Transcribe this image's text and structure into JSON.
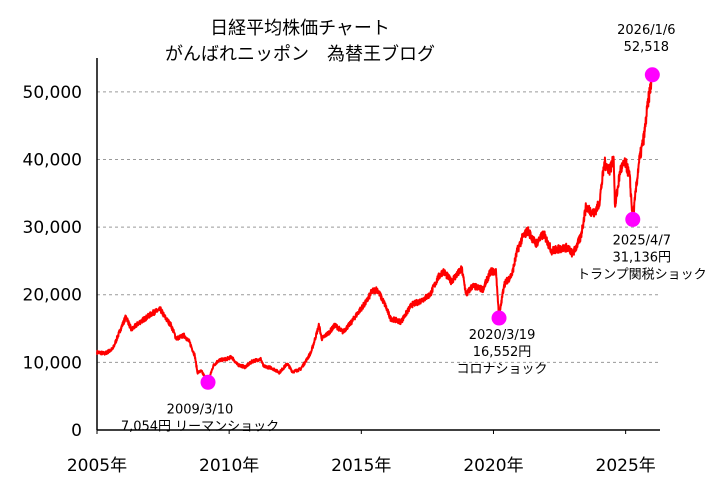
{
  "chart_data": {
    "type": "line",
    "title": "日経平均株価チャート",
    "subtitle": "がんばれニッポン　為替王ブログ",
    "xlabel": "",
    "ylabel": "",
    "xlim": [
      2005.0,
      2026.3
    ],
    "ylim": [
      0,
      55000
    ],
    "grid": true,
    "y_ticks": [
      {
        "value": 0,
        "label": "0"
      },
      {
        "value": 10000,
        "label": "10,000"
      },
      {
        "value": 20000,
        "label": "20,000"
      },
      {
        "value": 30000,
        "label": "30,000"
      },
      {
        "value": 40000,
        "label": "40,000"
      },
      {
        "value": 50000,
        "label": "50,000"
      }
    ],
    "x_ticks": [
      {
        "value": 2005,
        "label": "2005年"
      },
      {
        "value": 2010,
        "label": "2010年"
      },
      {
        "value": 2015,
        "label": "2015年"
      },
      {
        "value": 2020,
        "label": "2020年"
      },
      {
        "value": 2025,
        "label": "2025年"
      }
    ],
    "series": [
      {
        "name": "日経平均株価",
        "color": "#ff0000",
        "x": [
          2005.0,
          2005.3,
          2005.6,
          2005.9,
          2006.1,
          2006.3,
          2006.6,
          2006.9,
          2007.1,
          2007.4,
          2007.6,
          2007.8,
          2008.0,
          2008.3,
          2008.5,
          2008.7,
          2008.8,
          2008.95,
          2009.2,
          2009.4,
          2009.6,
          2009.9,
          2010.1,
          2010.3,
          2010.6,
          2010.9,
          2011.2,
          2011.3,
          2011.6,
          2011.9,
          2012.2,
          2012.4,
          2012.7,
          2012.9,
          2013.1,
          2013.4,
          2013.5,
          2013.8,
          2014.0,
          2014.3,
          2014.6,
          2014.9,
          2015.2,
          2015.4,
          2015.6,
          2015.9,
          2016.1,
          2016.5,
          2016.9,
          2017.2,
          2017.6,
          2017.9,
          2018.1,
          2018.4,
          2018.8,
          2018.97,
          2019.2,
          2019.6,
          2019.9,
          2020.1,
          2020.21,
          2020.4,
          2020.7,
          2020.9,
          2021.1,
          2021.3,
          2021.6,
          2021.9,
          2022.2,
          2022.5,
          2022.8,
          2023.0,
          2023.3,
          2023.5,
          2023.8,
          2024.0,
          2024.2,
          2024.4,
          2024.55,
          2024.6,
          2024.8,
          2025.0,
          2025.15,
          2025.27,
          2025.35,
          2025.5,
          2025.7,
          2025.85,
          2026.01
        ],
        "values": [
          11500,
          11300,
          12000,
          15000,
          16800,
          14800,
          15900,
          16700,
          17300,
          17800,
          16500,
          15500,
          13500,
          14000,
          13000,
          11000,
          8500,
          8700,
          7054,
          9500,
          10300,
          10500,
          10800,
          9700,
          9300,
          10200,
          10500,
          9400,
          9200,
          8500,
          9800,
          8600,
          9000,
          10200,
          11500,
          15500,
          13500,
          14500,
          15500,
          14500,
          15800,
          17500,
          19000,
          20500,
          20800,
          18500,
          16500,
          16000,
          18500,
          19000,
          20000,
          22500,
          23500,
          22000,
          23800,
          20000,
          21300,
          20800,
          23500,
          23300,
          16552,
          21500,
          23000,
          26500,
          28500,
          29500,
          27500,
          29000,
          26500,
          26800,
          27000,
          26000,
          28500,
          33000,
          32000,
          33500,
          39500,
          38500,
          40000,
          33000,
          38500,
          39500,
          37500,
          31136,
          34000,
          39500,
          43500,
          48500,
          52518
        ]
      }
    ],
    "annotations": [
      {
        "x": 2009.2,
        "y": 7054,
        "lines": [
          "2009/3/10",
          "7,054円 リーマンショック"
        ],
        "color": "#ff00ff"
      },
      {
        "x": 2020.21,
        "y": 16552,
        "lines": [
          "2020/3/19",
          "16,552円",
          "コロナショック"
        ],
        "color": "#ff00ff"
      },
      {
        "x": 2025.27,
        "y": 31136,
        "lines": [
          "2025/4/7",
          "31,136円",
          "トランプ関税ショック"
        ],
        "color": "#ff00ff"
      },
      {
        "x": 2026.01,
        "y": 52518,
        "lines": [
          "2026/1/6",
          "52,518"
        ],
        "color": "#ff00ff"
      }
    ]
  }
}
